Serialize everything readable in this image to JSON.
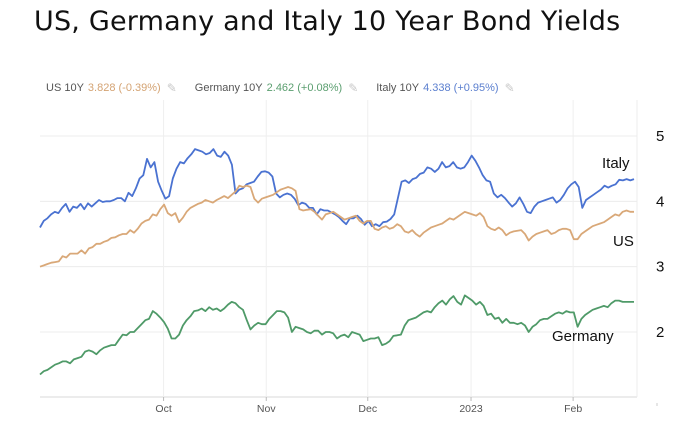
{
  "title": "US, Germany and Italy 10 Year Bond Yields",
  "legend": [
    {
      "name": "US 10Y",
      "value": "3.828",
      "change": "(-0.39%)",
      "color": "#d4a373"
    },
    {
      "name": "Germany 10Y",
      "value": "2.462",
      "change": "(+0.08%)",
      "color": "#5a9e6f"
    },
    {
      "name": "Italy 10Y",
      "value": "4.338",
      "change": "(+0.95%)",
      "color": "#5b7fcf"
    }
  ],
  "chart_data": {
    "type": "line",
    "title": "US, Germany and Italy 10 Year Bond Yields",
    "x_ticks": [
      "Oct",
      "Nov",
      "Dec",
      "2023",
      "Feb"
    ],
    "y_ticks": [
      "5",
      "4",
      "3",
      "2"
    ],
    "ylim": [
      1,
      5.2
    ],
    "grid": true,
    "series": [
      {
        "name": "Italy",
        "color": "#4a72d1",
        "values": [
          3.6,
          3.7,
          3.74,
          3.8,
          3.84,
          3.82,
          3.9,
          3.96,
          3.84,
          3.92,
          3.9,
          3.96,
          3.88,
          3.97,
          3.92,
          3.97,
          4.02,
          3.99,
          4.0,
          4.0,
          4.02,
          4.05,
          4.05,
          4.0,
          4.13,
          4.08,
          4.2,
          4.35,
          4.4,
          4.65,
          4.52,
          4.6,
          4.3,
          4.16,
          4.04,
          4.08,
          4.35,
          4.5,
          4.6,
          4.58,
          4.66,
          4.72,
          4.8,
          4.78,
          4.76,
          4.72,
          4.74,
          4.8,
          4.7,
          4.68,
          4.76,
          4.7,
          4.56,
          4.12,
          4.18,
          4.2,
          4.26,
          4.28,
          4.3,
          4.38,
          4.45,
          4.46,
          4.44,
          4.38,
          4.12,
          4.06,
          4.1,
          4.12,
          4.1,
          4.04,
          3.94,
          3.98,
          3.96,
          3.9,
          3.9,
          3.8,
          3.88,
          3.86,
          3.86,
          3.83,
          3.8,
          3.76,
          3.7,
          3.65,
          3.74,
          3.74,
          3.78,
          3.73,
          3.64,
          3.7,
          3.62,
          3.65,
          3.62,
          3.68,
          3.69,
          3.73,
          3.8,
          4.05,
          4.3,
          4.32,
          4.28,
          4.34,
          4.36,
          4.42,
          4.44,
          4.52,
          4.5,
          4.45,
          4.5,
          4.6,
          4.52,
          4.54,
          4.6,
          4.52,
          4.5,
          4.52,
          4.6,
          4.7,
          4.62,
          4.52,
          4.4,
          4.32,
          4.3,
          4.12,
          4.06,
          4.1,
          4.05,
          3.98,
          3.92,
          3.97,
          4.06,
          3.96,
          3.84,
          3.82,
          3.92,
          3.98,
          4.0,
          4.02,
          4.04,
          4.06,
          3.98,
          4.02,
          4.1,
          4.2,
          4.26,
          4.3,
          4.22,
          3.9,
          4.02,
          4.06,
          4.1,
          4.14,
          4.18,
          4.24,
          4.21,
          4.24,
          4.26,
          4.33,
          4.32,
          4.34,
          4.32,
          4.34
        ]
      },
      {
        "name": "US",
        "color": "#d9a878",
        "values": [
          3.0,
          3.02,
          3.04,
          3.06,
          3.07,
          3.08,
          3.16,
          3.14,
          3.2,
          3.2,
          3.2,
          3.25,
          3.2,
          3.28,
          3.3,
          3.35,
          3.35,
          3.38,
          3.4,
          3.44,
          3.45,
          3.48,
          3.5,
          3.5,
          3.56,
          3.52,
          3.58,
          3.66,
          3.7,
          3.72,
          3.8,
          3.78,
          3.88,
          3.95,
          3.82,
          3.78,
          3.82,
          3.68,
          3.75,
          3.84,
          3.9,
          3.93,
          3.96,
          3.98,
          4.02,
          4.0,
          3.98,
          4.02,
          4.05,
          4.08,
          4.05,
          4.1,
          4.15,
          4.24,
          4.22,
          4.24,
          4.22,
          4.04,
          3.98,
          4.04,
          4.06,
          4.08,
          4.1,
          4.14,
          4.18,
          4.2,
          4.22,
          4.2,
          4.16,
          3.88,
          3.86,
          3.87,
          3.88,
          3.84,
          3.78,
          3.72,
          3.8,
          3.82,
          3.84,
          3.8,
          3.76,
          3.72,
          3.74,
          3.76,
          3.78,
          3.7,
          3.66,
          3.7,
          3.7,
          3.58,
          3.56,
          3.6,
          3.62,
          3.58,
          3.6,
          3.65,
          3.62,
          3.54,
          3.52,
          3.56,
          3.5,
          3.46,
          3.52,
          3.56,
          3.6,
          3.62,
          3.64,
          3.66,
          3.7,
          3.74,
          3.72,
          3.76,
          3.8,
          3.84,
          3.82,
          3.8,
          3.78,
          3.82,
          3.76,
          3.62,
          3.58,
          3.56,
          3.6,
          3.56,
          3.48,
          3.52,
          3.54,
          3.55,
          3.56,
          3.5,
          3.4,
          3.46,
          3.5,
          3.52,
          3.54,
          3.56,
          3.5,
          3.52,
          3.56,
          3.58,
          3.58,
          3.56,
          3.42,
          3.42,
          3.5,
          3.54,
          3.58,
          3.62,
          3.64,
          3.66,
          3.68,
          3.72,
          3.76,
          3.8,
          3.78,
          3.84,
          3.86,
          3.84,
          3.84
        ]
      },
      {
        "name": "Germany",
        "color": "#4f9a68",
        "values": [
          1.35,
          1.4,
          1.42,
          1.46,
          1.5,
          1.52,
          1.55,
          1.55,
          1.52,
          1.58,
          1.6,
          1.62,
          1.7,
          1.72,
          1.7,
          1.66,
          1.72,
          1.76,
          1.78,
          1.8,
          1.8,
          1.88,
          1.96,
          1.95,
          2.0,
          2.0,
          2.06,
          2.12,
          2.18,
          2.2,
          2.32,
          2.28,
          2.22,
          2.15,
          2.05,
          1.9,
          1.9,
          1.96,
          2.1,
          2.18,
          2.24,
          2.32,
          2.33,
          2.36,
          2.32,
          2.38,
          2.34,
          2.36,
          2.32,
          2.36,
          2.42,
          2.46,
          2.44,
          2.38,
          2.34,
          2.18,
          2.04,
          2.1,
          2.14,
          2.12,
          2.12,
          2.2,
          2.26,
          2.32,
          2.32,
          2.3,
          2.22,
          2.0,
          2.08,
          2.06,
          2.04,
          2.0,
          1.98,
          2.02,
          2.02,
          1.96,
          2.0,
          2.0,
          1.98,
          1.9,
          1.94,
          1.96,
          1.92,
          2.0,
          1.98,
          1.96,
          1.86,
          1.88,
          1.9,
          1.9,
          1.92,
          1.8,
          1.82,
          1.86,
          1.94,
          1.95,
          1.96,
          2.1,
          2.18,
          2.2,
          2.22,
          2.26,
          2.3,
          2.32,
          2.3,
          2.38,
          2.44,
          2.48,
          2.42,
          2.5,
          2.55,
          2.46,
          2.42,
          2.56,
          2.52,
          2.48,
          2.42,
          2.46,
          2.4,
          2.26,
          2.28,
          2.2,
          2.22,
          2.14,
          2.2,
          2.14,
          2.14,
          2.12,
          2.14,
          2.1,
          2.0,
          2.08,
          2.12,
          2.18,
          2.2,
          2.2,
          2.24,
          2.28,
          2.3,
          2.28,
          2.32,
          2.3,
          2.3,
          2.08,
          2.2,
          2.26,
          2.3,
          2.34,
          2.36,
          2.38,
          2.4,
          2.38,
          2.44,
          2.48,
          2.48,
          2.46,
          2.46,
          2.46,
          2.46
        ]
      }
    ],
    "annotations": [
      {
        "text": "Italy",
        "series": "Italy"
      },
      {
        "text": "US",
        "series": "US"
      },
      {
        "text": "Germany",
        "series": "Germany"
      }
    ]
  }
}
